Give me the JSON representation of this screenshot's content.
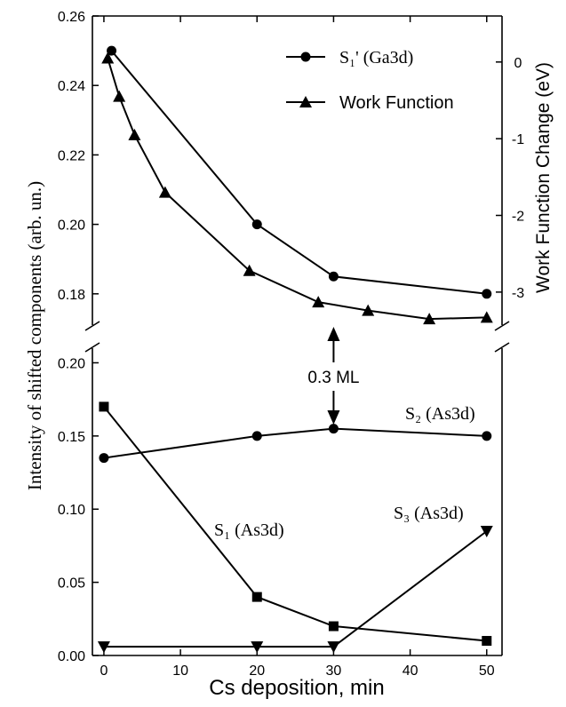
{
  "chart_data": {
    "type": "line",
    "x_axis": {
      "label": "Cs deposition, min",
      "range": [
        -1.5,
        52
      ],
      "ticks": [
        "0",
        "10",
        "20",
        "30",
        "40",
        "50"
      ],
      "tick_values": [
        0,
        10,
        20,
        30,
        40,
        50
      ]
    },
    "y_axis_left": {
      "label": "Intensity of shifted components (arb. un.)",
      "upper_range": [
        0.171,
        0.26
      ],
      "upper_ticks": [
        "0.18",
        "0.20",
        "0.22",
        "0.24",
        "0.26"
      ],
      "upper_tick_values": [
        0.18,
        0.2,
        0.22,
        0.24,
        0.26
      ],
      "lower_range": [
        0.0,
        0.21
      ],
      "lower_ticks": [
        "0.00",
        "0.05",
        "0.10",
        "0.15",
        "0.20"
      ],
      "lower_tick_values": [
        0.0,
        0.05,
        0.1,
        0.15,
        0.2
      ],
      "broken": true
    },
    "y_axis_right": {
      "label": "Work Function Change (eV)",
      "range": [
        -3.43,
        0.6
      ],
      "ticks": [
        "0",
        "-1",
        "-2",
        "-3"
      ],
      "tick_values": [
        0,
        -1,
        -2,
        -3
      ]
    },
    "series": [
      {
        "name": "S₁' (Ga3d)",
        "panel": "upper",
        "axis": "left",
        "marker": "circle",
        "x": [
          1,
          20,
          30,
          50
        ],
        "y": [
          0.25,
          0.2,
          0.185,
          0.18
        ]
      },
      {
        "name": "Work Function",
        "panel": "upper",
        "axis": "right",
        "marker": "triangle-up",
        "x": [
          0.5,
          2,
          4,
          8,
          19,
          28,
          34.5,
          42.5,
          50
        ],
        "y": [
          0.05,
          -0.45,
          -0.95,
          -1.7,
          -2.72,
          -3.13,
          -3.24,
          -3.35,
          -3.33
        ]
      },
      {
        "name": "S₂ (As3d)",
        "panel": "lower",
        "axis": "left",
        "marker": "circle",
        "x": [
          0,
          20,
          30,
          50
        ],
        "y": [
          0.135,
          0.15,
          0.155,
          0.15
        ]
      },
      {
        "name": "S₁ (As3d)",
        "panel": "lower",
        "axis": "left",
        "marker": "square",
        "x": [
          0,
          20,
          30,
          50
        ],
        "y": [
          0.17,
          0.04,
          0.02,
          0.01
        ]
      },
      {
        "name": "S₃ (As3d)",
        "panel": "lower",
        "axis": "left",
        "marker": "triangle-down",
        "x": [
          0,
          20,
          30,
          50
        ],
        "y": [
          0.006,
          0.006,
          0.006,
          0.085
        ]
      }
    ],
    "annotations": [
      {
        "text": "0.3 ML",
        "x": 30
      }
    ],
    "legend": {
      "placement": "top-right",
      "entries": [
        "S₁' (Ga3d)",
        "Work Function"
      ]
    },
    "grid": false
  }
}
